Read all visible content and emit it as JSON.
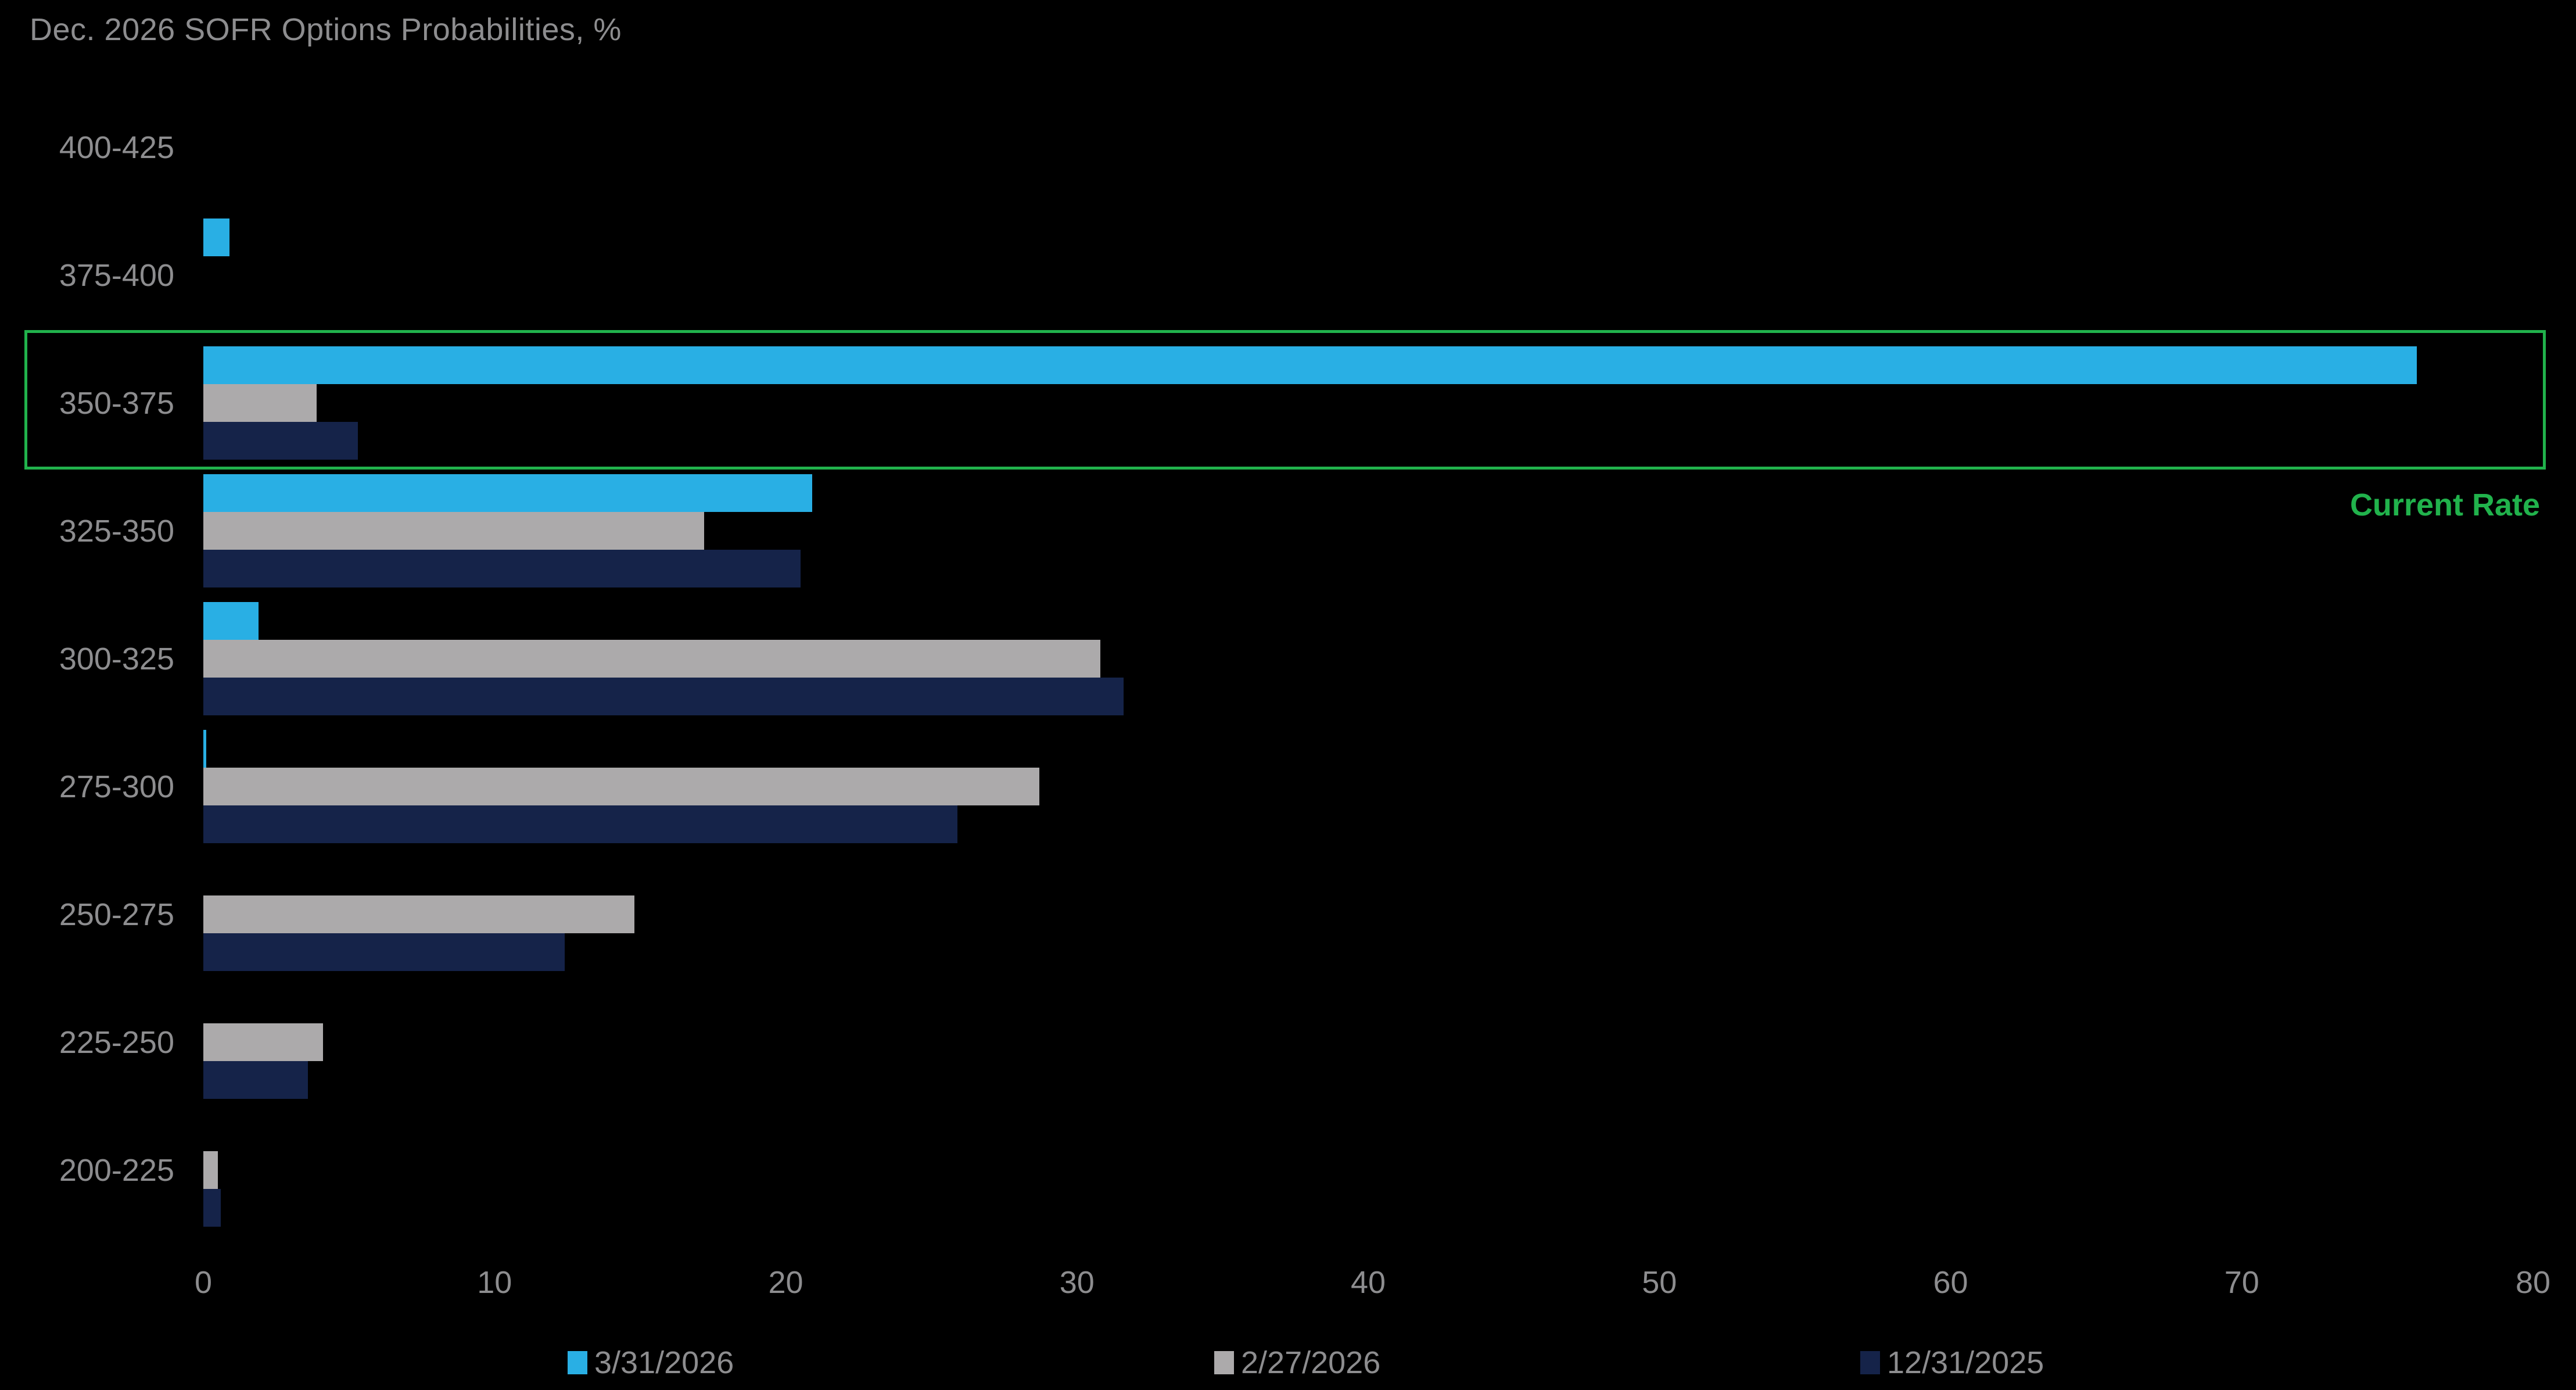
{
  "chart_data": {
    "type": "bar",
    "orientation": "horizontal",
    "title": "Dec. 2026 SOFR Options Probabilities, %",
    "categories": [
      "400-425",
      "375-400",
      "350-375",
      "325-350",
      "300-325",
      "275-300",
      "250-275",
      "225-250",
      "200-225"
    ],
    "series": [
      {
        "name": "3/31/2026",
        "color": "#29afe4",
        "values": [
          0,
          0.9,
          76.0,
          20.9,
          1.9,
          0.1,
          0,
          0,
          0
        ]
      },
      {
        "name": "2/27/2026",
        "color": "#acaaab",
        "values": [
          0,
          0,
          3.9,
          17.2,
          30.8,
          28.7,
          14.8,
          4.1,
          0.5
        ]
      },
      {
        "name": "12/31/2025",
        "color": "#152349",
        "values": [
          0,
          0,
          5.3,
          20.5,
          31.6,
          25.9,
          12.4,
          3.6,
          0.6
        ]
      }
    ],
    "xlim": [
      0,
      80
    ],
    "xticks": [
      0,
      10,
      20,
      30,
      40,
      50,
      60,
      70,
      80
    ],
    "grid": false,
    "legend_position": "bottom",
    "background_color": "#000000",
    "text_color": "#8d8d8f",
    "annotation": {
      "text": "Current Rate",
      "highlight_category": "350-375",
      "color": "#21b24c"
    }
  }
}
